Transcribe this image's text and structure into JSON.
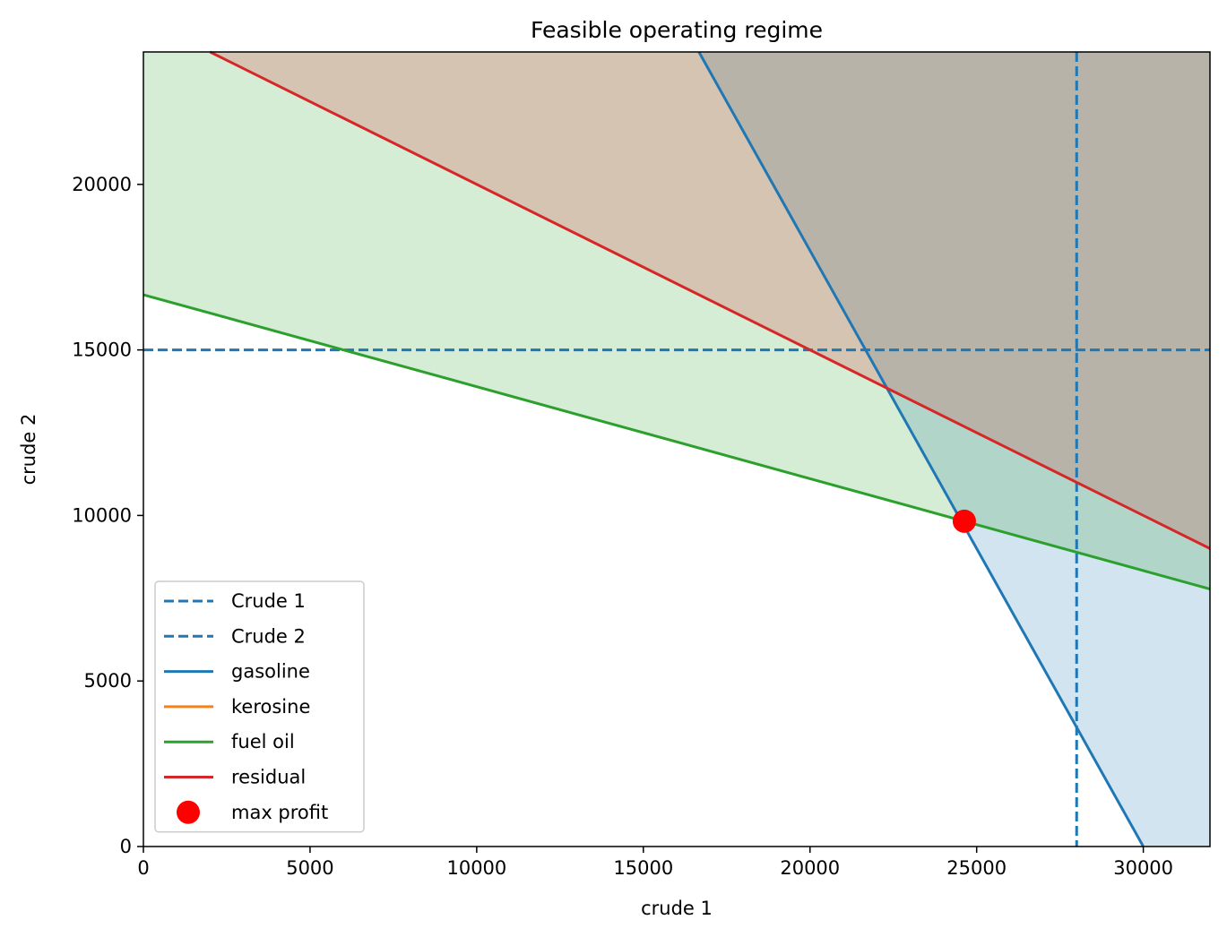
{
  "chart_data": {
    "type": "line",
    "title": "Feasible operating regime",
    "xlabel": "crude 1",
    "ylabel": "crude 2",
    "xlim": [
      0,
      32000
    ],
    "ylim": [
      0,
      24000
    ],
    "xticks": [
      0,
      5000,
      10000,
      15000,
      20000,
      25000,
      30000
    ],
    "yticks": [
      0,
      5000,
      10000,
      15000,
      20000
    ],
    "xtick_labels": [
      "0",
      "5000",
      "10000",
      "15000",
      "20000",
      "25000",
      "30000"
    ],
    "ytick_labels": [
      "0",
      "5000",
      "10000",
      "15000",
      "20000"
    ],
    "grid": false,
    "legend_position": "lower left",
    "series": [
      {
        "name": "Crude 1",
        "style": "dashed",
        "color": "#1f77b4",
        "kind": "vertical",
        "x": 28000
      },
      {
        "name": "Crude 2",
        "style": "dashed",
        "color": "#1f77b4",
        "kind": "horizontal",
        "y": 15000
      },
      {
        "name": "gasoline",
        "style": "solid",
        "color": "#1f77b4",
        "kind": "line",
        "points": [
          [
            30000,
            0
          ],
          [
            16667,
            24000
          ]
        ],
        "shade": "above",
        "fill": "#1f77b4"
      },
      {
        "name": "kerosine",
        "style": "solid",
        "color": "#ff7f0e",
        "kind": "legend-only"
      },
      {
        "name": "fuel oil",
        "style": "solid",
        "color": "#2ca02c",
        "kind": "line",
        "points": [
          [
            0,
            16667
          ],
          [
            32000,
            7778
          ]
        ],
        "shade": "above",
        "fill": "#2ca02c"
      },
      {
        "name": "residual",
        "style": "solid",
        "color": "#d62728",
        "kind": "line",
        "points": [
          [
            0,
            25000
          ],
          [
            32000,
            9000
          ]
        ],
        "shade": "above",
        "fill": "#d62728"
      },
      {
        "name": "max profit",
        "style": "marker",
        "color": "#ff0000",
        "kind": "point",
        "x": 24630,
        "y": 9826
      }
    ]
  }
}
